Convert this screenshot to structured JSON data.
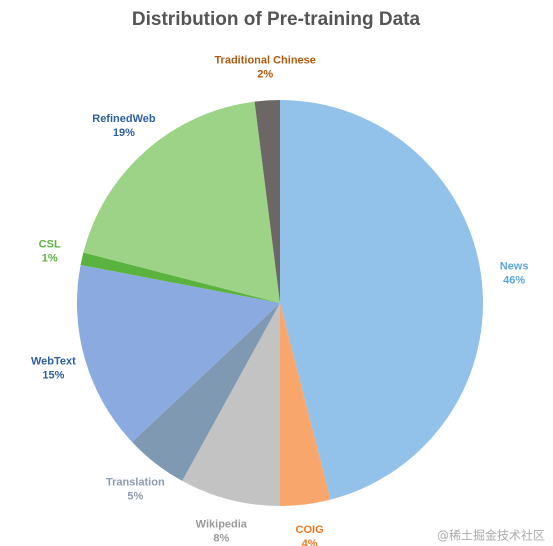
{
  "chart_data": {
    "type": "pie",
    "title": "Distribution of Pre-training Data",
    "categories": [
      "News",
      "COIG",
      "Wikipedia",
      "Translation",
      "WebText",
      "CSL",
      "RefinedWeb",
      "Traditional Chinese"
    ],
    "values": [
      46,
      4,
      8,
      5,
      15,
      1,
      19,
      2
    ],
    "value_labels": [
      "46%",
      "4%",
      "8%",
      "5%",
      "15%",
      "1%",
      "19%",
      "2%"
    ],
    "colors": [
      "#92c1ea",
      "#f9a66c",
      "#c3c3c3",
      "#7f99b2",
      "#8aaae0",
      "#5bb33f",
      "#9cd387",
      "#6c6664"
    ],
    "label_colors": [
      "#5aa6dc",
      "#e8791f",
      "#9a9a9a",
      "#8b9ab0",
      "#2e5f9e",
      "#5bb33f",
      "#2e5f9e",
      "#b05a10"
    ],
    "watermark": "@稀土掘金技术社区"
  }
}
